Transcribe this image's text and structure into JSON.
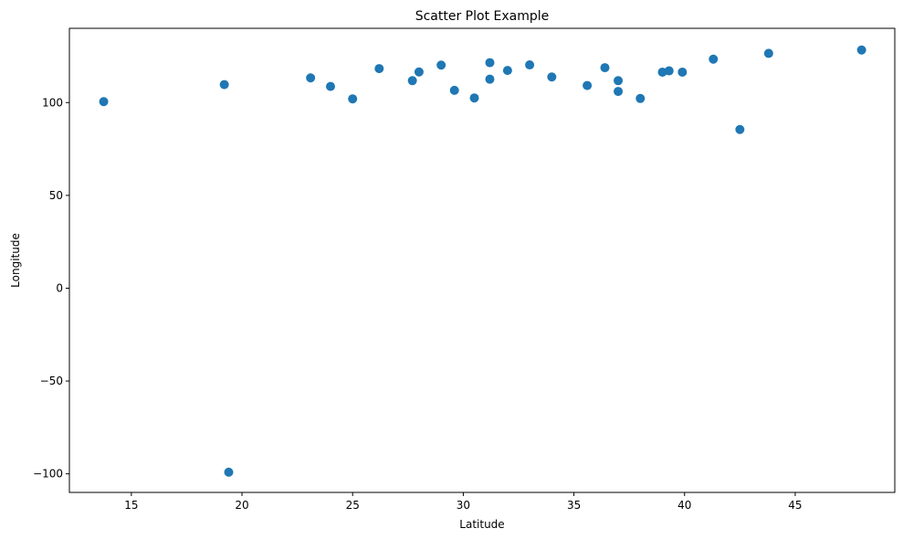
{
  "chart_data": {
    "type": "scatter",
    "title": "Scatter Plot Example",
    "xlabel": "Latitude",
    "ylabel": "Longitude",
    "xlim": [
      12.2,
      49.5
    ],
    "ylim": [
      -110,
      140
    ],
    "xticks": [
      15,
      20,
      25,
      30,
      35,
      40,
      45
    ],
    "yticks": [
      -100,
      -50,
      0,
      50,
      100
    ],
    "grid": false,
    "color": "#1f77b4",
    "points": [
      {
        "x": 13.75,
        "y": 100.5
      },
      {
        "x": 19.2,
        "y": 109.7
      },
      {
        "x": 19.4,
        "y": -99.1
      },
      {
        "x": 23.1,
        "y": 113.3
      },
      {
        "x": 24.0,
        "y": 108.7
      },
      {
        "x": 25.0,
        "y": 102.0
      },
      {
        "x": 26.2,
        "y": 118.3
      },
      {
        "x": 27.7,
        "y": 111.8
      },
      {
        "x": 28.0,
        "y": 116.5
      },
      {
        "x": 29.0,
        "y": 120.2
      },
      {
        "x": 29.6,
        "y": 106.6
      },
      {
        "x": 30.5,
        "y": 102.5
      },
      {
        "x": 31.2,
        "y": 112.6
      },
      {
        "x": 31.2,
        "y": 121.5
      },
      {
        "x": 32.0,
        "y": 117.3
      },
      {
        "x": 33.0,
        "y": 120.3
      },
      {
        "x": 34.0,
        "y": 113.8
      },
      {
        "x": 35.6,
        "y": 109.2
      },
      {
        "x": 36.4,
        "y": 118.8
      },
      {
        "x": 37.0,
        "y": 111.8
      },
      {
        "x": 37.0,
        "y": 106.0
      },
      {
        "x": 38.0,
        "y": 102.2
      },
      {
        "x": 39.0,
        "y": 116.4
      },
      {
        "x": 39.3,
        "y": 117.1
      },
      {
        "x": 39.9,
        "y": 116.4
      },
      {
        "x": 41.3,
        "y": 123.4
      },
      {
        "x": 42.5,
        "y": 85.5
      },
      {
        "x": 43.8,
        "y": 126.5
      },
      {
        "x": 48.0,
        "y": 128.3
      }
    ]
  }
}
